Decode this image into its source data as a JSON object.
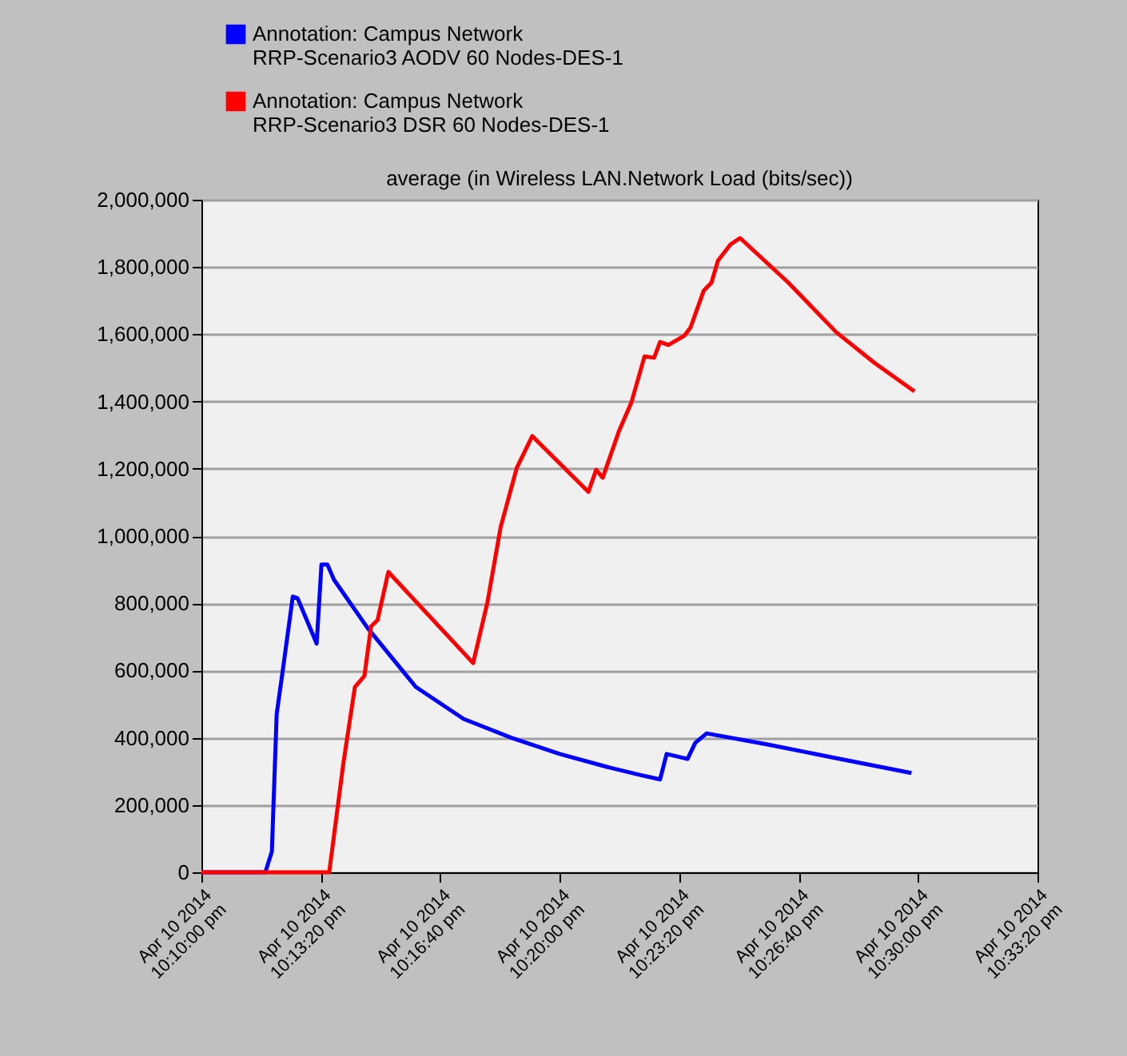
{
  "chart_data": {
    "type": "line",
    "title": "average (in Wireless LAN.Network Load (bits/sec))",
    "xlim": [
      "2014-04-10T22:10:00",
      "2014-04-10T22:33:20"
    ],
    "xticks": [
      {
        "value": "2014-04-10T22:10:00",
        "label": "Apr 10 2014\n10:10:00 pm"
      },
      {
        "value": "2014-04-10T22:13:20",
        "label": "Apr 10 2014\n10:13:20 pm"
      },
      {
        "value": "2014-04-10T22:16:40",
        "label": "Apr 10 2014\n10:16:40 pm"
      },
      {
        "value": "2014-04-10T22:20:00",
        "label": "Apr 10 2014\n10:20:00 pm"
      },
      {
        "value": "2014-04-10T22:23:20",
        "label": "Apr 10 2014\n10:23:20 pm"
      },
      {
        "value": "2014-04-10T22:26:40",
        "label": "Apr 10 2014\n10:26:40 pm"
      },
      {
        "value": "2014-04-10T22:30:00",
        "label": "Apr 10 2014\n10:30:00 pm"
      },
      {
        "value": "2014-04-10T22:33:20",
        "label": "Apr 10 2014\n10:33:20 pm"
      }
    ],
    "ylim": [
      0,
      2000000
    ],
    "yticks": [
      {
        "value": 0,
        "label": "0"
      },
      {
        "value": 200000,
        "label": "200,000"
      },
      {
        "value": 400000,
        "label": "400,000"
      },
      {
        "value": 600000,
        "label": "600,000"
      },
      {
        "value": 800000,
        "label": "800,000"
      },
      {
        "value": 1000000,
        "label": "1,000,000"
      },
      {
        "value": 1200000,
        "label": "1,200,000"
      },
      {
        "value": 1400000,
        "label": "1,400,000"
      },
      {
        "value": 1600000,
        "label": "1,600,000"
      },
      {
        "value": 1800000,
        "label": "1,800,000"
      },
      {
        "value": 2000000,
        "label": "2,000,000"
      }
    ],
    "grid": "y",
    "legend": "top left",
    "marker": "none",
    "line_style": "solid",
    "series": [
      {
        "name": "Annotation: Campus Network\nRRP-Scenario3 AODV 60 Nodes-DES-1",
        "color": "#0000ff",
        "x": [
          "2014-04-10T22:10:00",
          "2014-04-10T22:11:47",
          "2014-04-10T22:11:58",
          "2014-04-10T22:12:06",
          "2014-04-10T22:12:17",
          "2014-04-10T22:12:33",
          "2014-04-10T22:12:41",
          "2014-04-10T22:13:13",
          "2014-04-10T22:13:21",
          "2014-04-10T22:13:31",
          "2014-04-10T22:13:42",
          "2014-04-10T22:14:38",
          "2014-04-10T22:15:59",
          "2014-04-10T22:17:19",
          "2014-04-10T22:18:39",
          "2014-04-10T22:20:00",
          "2014-04-10T22:21:20",
          "2014-04-10T22:22:13",
          "2014-04-10T22:22:48",
          "2014-04-10T22:22:59",
          "2014-04-10T22:23:34",
          "2014-04-10T22:23:47",
          "2014-04-10T22:24:06",
          "2014-04-10T22:25:48",
          "2014-04-10T22:27:35",
          "2014-04-10T22:29:49"
        ],
        "values": [
          0,
          0,
          62000,
          470000,
          610000,
          820000,
          815000,
          680000,
          915000,
          915000,
          870000,
          727000,
          551000,
          456000,
          400000,
          352000,
          313000,
          290000,
          276000,
          352000,
          337000,
          385000,
          413000,
          380000,
          342000,
          295000
        ]
      },
      {
        "name": "Annotation: Campus Network\nRRP-Scenario3 DSR 60 Nodes-DES-1",
        "color": "#ff0000",
        "x": [
          "2014-04-10T22:10:00",
          "2014-04-10T22:13:34",
          "2014-04-10T22:13:58",
          "2014-04-10T22:14:17",
          "2014-04-10T22:14:33",
          "2014-04-10T22:14:44",
          "2014-04-10T22:14:55",
          "2014-04-10T22:15:13",
          "2014-04-10T22:17:35",
          "2014-04-10T22:17:59",
          "2014-04-10T22:18:21",
          "2014-04-10T22:18:48",
          "2014-04-10T22:19:14",
          "2014-04-10T22:20:48",
          "2014-04-10T22:21:01",
          "2014-04-10T22:21:12",
          "2014-04-10T22:21:39",
          "2014-04-10T22:22:00",
          "2014-04-10T22:22:22",
          "2014-04-10T22:22:38",
          "2014-04-10T22:22:48",
          "2014-04-10T22:23:02",
          "2014-04-10T22:23:29",
          "2014-04-10T22:23:39",
          "2014-04-10T22:24:01",
          "2014-04-10T22:24:14",
          "2014-04-10T22:24:25",
          "2014-04-10T22:24:46",
          "2014-04-10T22:25:02",
          "2014-04-10T22:26:23",
          "2014-04-10T22:27:43",
          "2014-04-10T22:28:47",
          "2014-04-10T22:29:54"
        ],
        "values": [
          0,
          0,
          328000,
          551000,
          584000,
          731000,
          750000,
          893000,
          622000,
          803000,
          1026000,
          1202000,
          1297000,
          1131000,
          1197000,
          1173000,
          1311000,
          1397000,
          1534000,
          1530000,
          1577000,
          1568000,
          1596000,
          1620000,
          1729000,
          1753000,
          1819000,
          1867000,
          1886000,
          1753000,
          1606000,
          1515000,
          1430000
        ]
      }
    ]
  }
}
